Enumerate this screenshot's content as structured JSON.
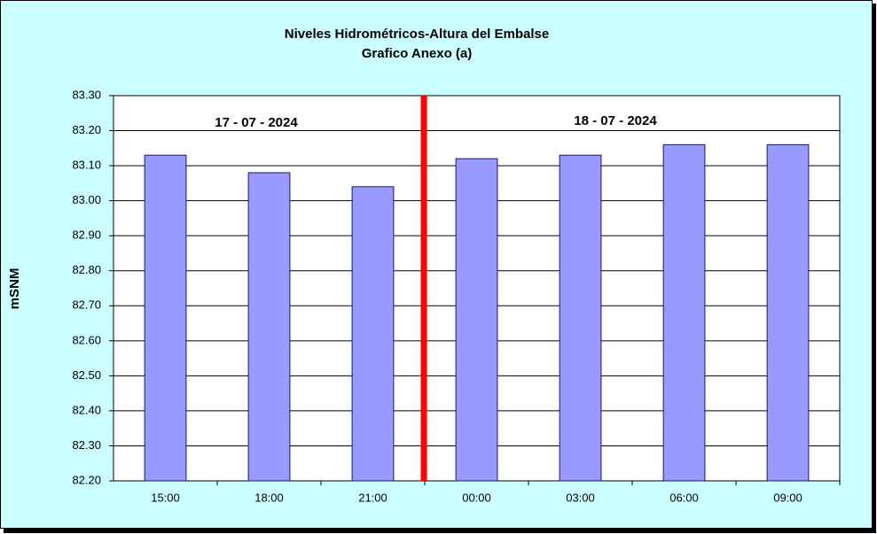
{
  "chart_data": {
    "type": "bar",
    "title": "Niveles Hidrométricos-Altura del Embalse",
    "subtitle": "Grafico Anexo (a)",
    "y_label": "mSNM",
    "annotations": [
      "17 - 07 - 2024",
      "18 - 07 - 2024"
    ],
    "categories": [
      "15:00",
      "18:00",
      "21:00",
      "00:00",
      "03:00",
      "06:00",
      "09:00"
    ],
    "values": [
      83.13,
      83.08,
      83.04,
      83.12,
      83.13,
      83.16,
      83.16
    ],
    "color": "#9999ff",
    "ylim": [
      82.2,
      83.3
    ],
    "yticks": [
      {
        "value": 82.2,
        "label": "82.20"
      },
      {
        "value": 82.3,
        "label": "82.30"
      },
      {
        "value": 82.4,
        "label": "82.40"
      },
      {
        "value": 82.5,
        "label": "82.50"
      },
      {
        "value": 82.6,
        "label": "82.60"
      },
      {
        "value": 82.7,
        "label": "82.70"
      },
      {
        "value": 82.8,
        "label": "82.80"
      },
      {
        "value": 82.9,
        "label": "82.90"
      },
      {
        "value": 83.0,
        "label": "83.00"
      },
      {
        "value": 83.1,
        "label": "83.10"
      },
      {
        "value": 83.2,
        "label": "83.20"
      },
      {
        "value": 83.3,
        "label": "83.30"
      }
    ],
    "grid": true
  }
}
